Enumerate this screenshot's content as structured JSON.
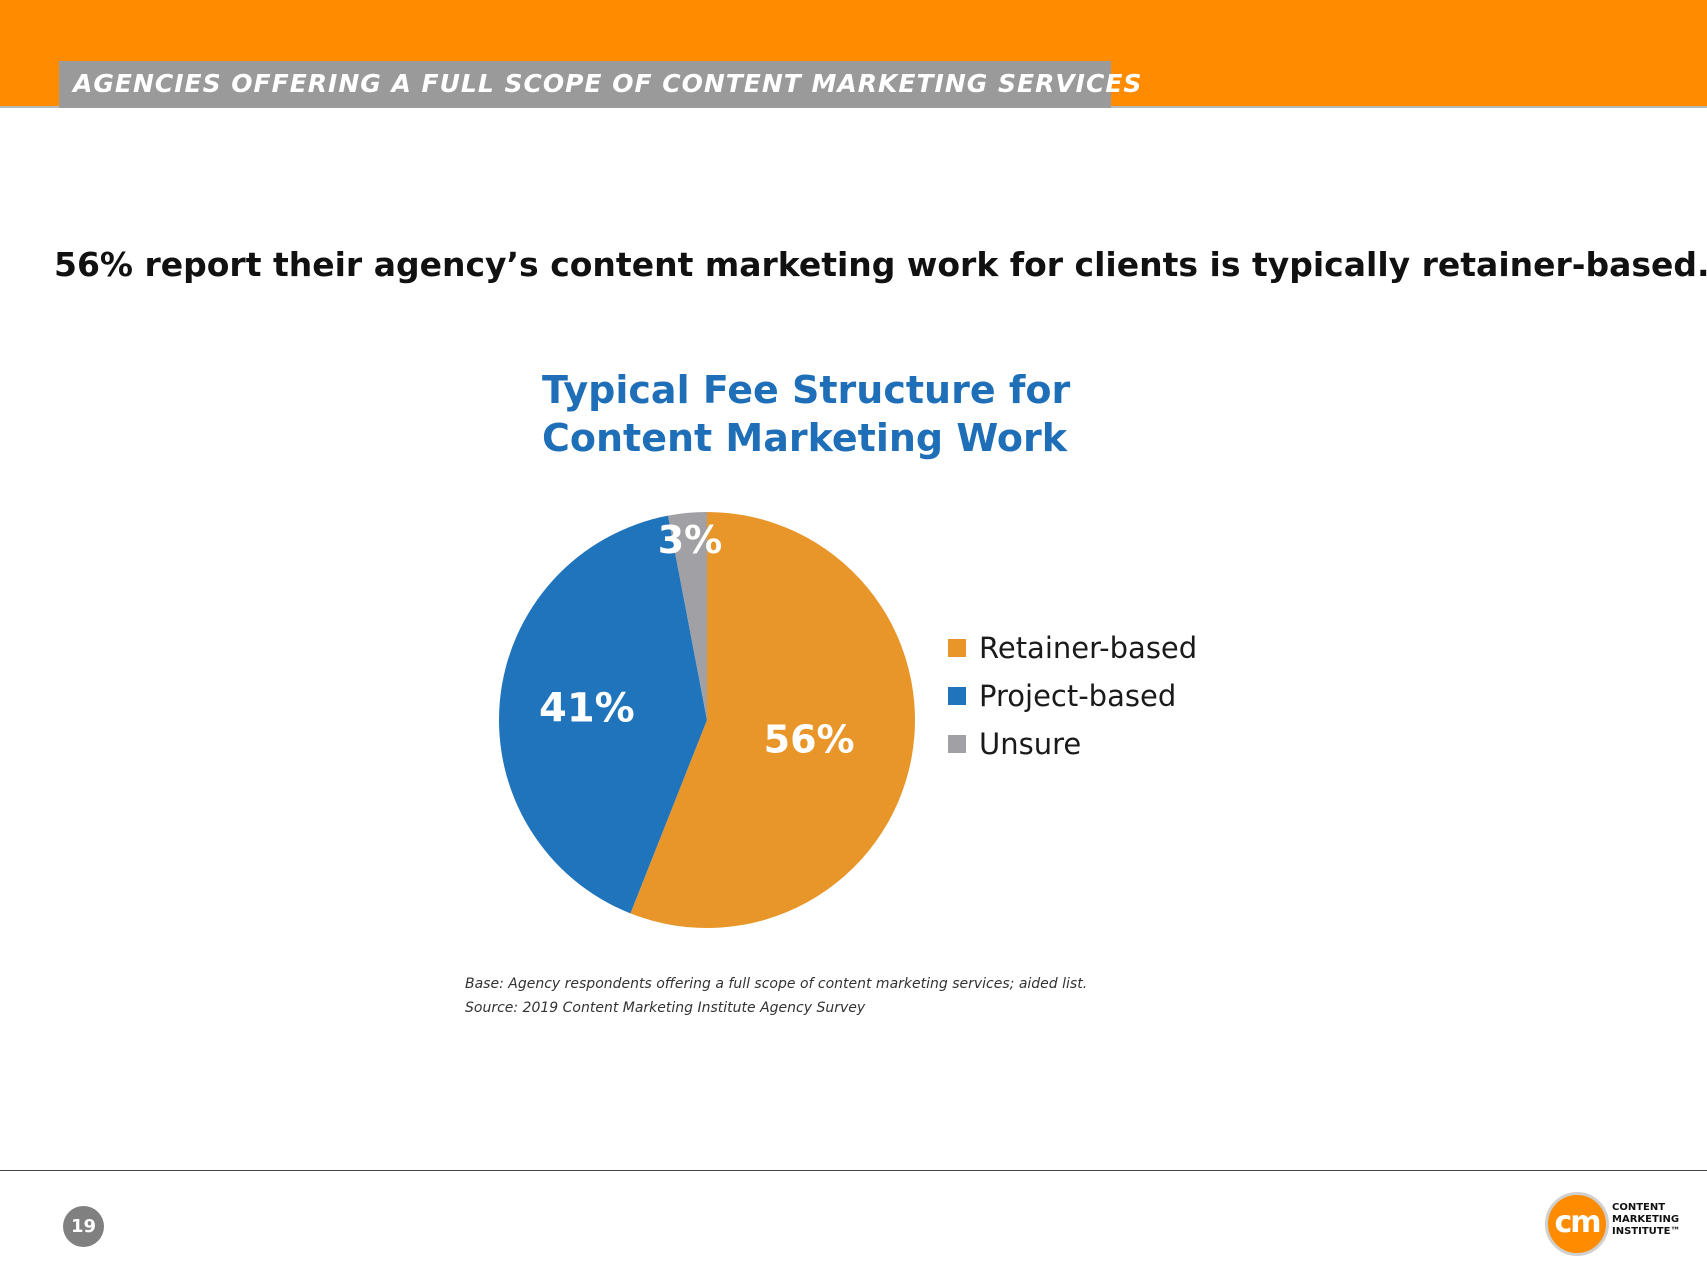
{
  "header": {
    "title": "AGENCIES OFFERING A FULL SCOPE OF CONTENT MARKETING SERVICES"
  },
  "headline": "56% report their agency’s content marketing work for clients is typically retainer-based.",
  "chart_data": {
    "type": "pie",
    "title_lines": [
      "Typical Fee Structure for",
      "Content Marketing Work"
    ],
    "categories": [
      "Retainer-based",
      "Project-based",
      "Unsure"
    ],
    "values": [
      56,
      41,
      3
    ],
    "data_labels": [
      "56%",
      "41%",
      "3%"
    ],
    "colors": [
      "#e8962a",
      "#1f74bb",
      "#a0a0a5"
    ],
    "start_angle": "12 o'clock",
    "direction": "clockwise",
    "legend_position": "right"
  },
  "notes": {
    "base": "Base: Agency respondents offering a full scope of content marketing services; aided list.",
    "source": "Source: 2019 Content Marketing Institute Agency Survey"
  },
  "footer": {
    "page_number": "19",
    "logo_mark": "cm",
    "logo_words": [
      "CONTENT",
      "MARKETING",
      "INSTITUTE™"
    ]
  }
}
